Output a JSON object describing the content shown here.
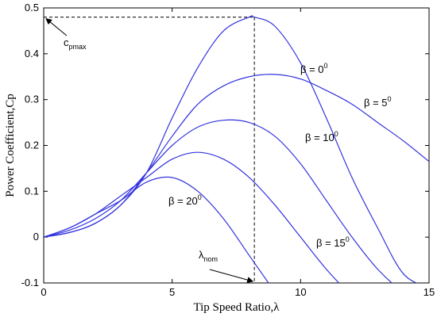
{
  "chart_data": {
    "type": "line",
    "xlabel": "Tip Speed Ratio,λ",
    "ylabel": "Power Coefficient,Cp",
    "xlim": [
      0,
      15
    ],
    "ylim": [
      -0.1,
      0.5
    ],
    "x_ticks": [
      0,
      5,
      10,
      15
    ],
    "y_ticks": [
      -0.1,
      0,
      0.1,
      0.2,
      0.3,
      0.4,
      0.5
    ],
    "x_tick_labels": [
      "0",
      "5",
      "10",
      "15"
    ],
    "y_tick_labels": [
      "-0.1",
      "0",
      "0.1",
      "0.2",
      "0.3",
      "0.4",
      "0.5"
    ],
    "grid": false,
    "series_color": "#3333dd",
    "series": [
      {
        "name": "β = 0⁰",
        "label": {
          "base": "β = 0",
          "sup": "0"
        },
        "x": [
          0,
          1,
          2,
          3,
          4,
          5,
          6,
          7,
          8,
          8.2,
          9,
          10,
          11,
          12,
          13,
          14,
          15
        ],
        "y": [
          0,
          0.01,
          0.03,
          0.07,
          0.14,
          0.26,
          0.37,
          0.45,
          0.48,
          0.48,
          0.46,
          0.38,
          0.26,
          0.13,
          0.02,
          -0.08,
          -0.11
        ]
      },
      {
        "name": "β = 5⁰",
        "label": {
          "base": "β = 5",
          "sup": "0"
        },
        "x": [
          0,
          1,
          2,
          3,
          4,
          5,
          6,
          7,
          8,
          9,
          10,
          11,
          12,
          13,
          14,
          15
        ],
        "y": [
          0,
          0.01,
          0.03,
          0.07,
          0.14,
          0.22,
          0.29,
          0.33,
          0.35,
          0.355,
          0.345,
          0.32,
          0.29,
          0.25,
          0.21,
          0.165
        ]
      },
      {
        "name": "β = 10⁰",
        "label": {
          "base": "β = 10",
          "sup": "0"
        },
        "x": [
          0,
          1,
          2,
          3,
          4,
          5,
          6,
          7,
          8,
          9,
          10,
          11,
          12,
          13,
          14,
          15
        ],
        "y": [
          0,
          0.015,
          0.04,
          0.08,
          0.14,
          0.2,
          0.24,
          0.255,
          0.25,
          0.22,
          0.16,
          0.08,
          0.0,
          -0.07,
          -0.12,
          -0.15
        ]
      },
      {
        "name": "β = 15⁰",
        "label": {
          "base": "β = 15",
          "sup": "0"
        },
        "x": [
          0,
          1,
          2,
          3,
          4,
          5,
          6,
          7,
          8,
          9,
          10,
          11,
          12
        ],
        "y": [
          0,
          0.02,
          0.05,
          0.09,
          0.13,
          0.17,
          0.185,
          0.17,
          0.13,
          0.07,
          0.0,
          -0.07,
          -0.13
        ]
      },
      {
        "name": "β = 20⁰",
        "label": {
          "base": "β = 20",
          "sup": "0"
        },
        "x": [
          0,
          1,
          2,
          3,
          4,
          5,
          6,
          7,
          8,
          9
        ],
        "y": [
          0,
          0.02,
          0.05,
          0.08,
          0.12,
          0.13,
          0.1,
          0.04,
          -0.04,
          -0.12
        ]
      }
    ],
    "reference_lines": {
      "x": 8.2,
      "y": 0.48,
      "style": "dashed"
    },
    "annotations": [
      {
        "name": "cpmax",
        "base": "c",
        "sub": "pmax",
        "arrow_to": [
          0,
          0.48
        ]
      },
      {
        "name": "lambda-nom",
        "base": "λ",
        "sub": "nom",
        "arrow_to": [
          8.2,
          -0.1
        ]
      }
    ]
  }
}
